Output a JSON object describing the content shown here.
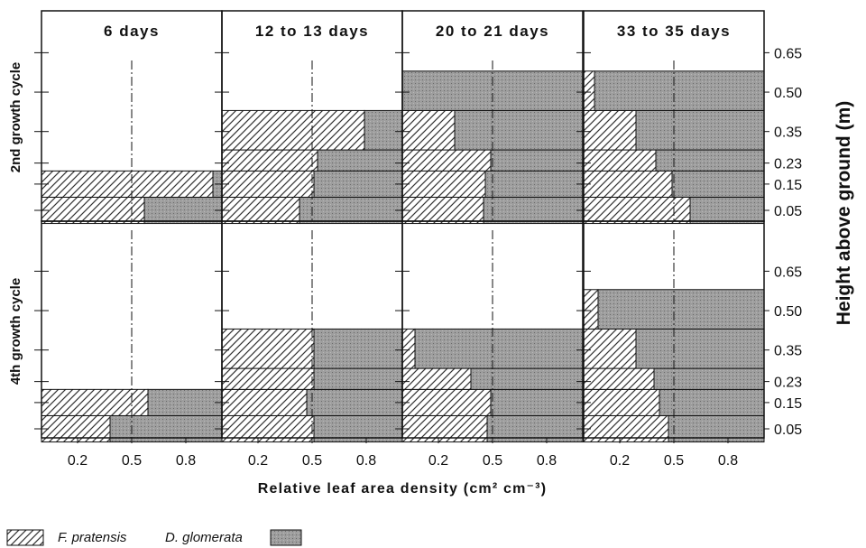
{
  "chart_data": {
    "type": "bar",
    "orientation": "horizontal",
    "stacked": true,
    "xlabel": "Relative leaf area density (cm² cm⁻³)",
    "ylabel": "Height above ground (m)",
    "x_ticks": [
      "0.2",
      "0.5",
      "0.8"
    ],
    "x_tick_values": [
      0.2,
      0.5,
      0.8
    ],
    "xlim": [
      0,
      1
    ],
    "reference_line_x": 0.5,
    "y_ticks": [
      "0.05",
      "0.15",
      "0.23",
      "0.35",
      "0.50",
      "0.65"
    ],
    "y_tick_values": [
      0.05,
      0.15,
      0.23,
      0.35,
      0.5,
      0.65
    ],
    "height_bands": [
      [
        0.0,
        0.1
      ],
      [
        0.1,
        0.2
      ],
      [
        0.2,
        0.28
      ],
      [
        0.28,
        0.43
      ],
      [
        0.43,
        0.58
      ]
    ],
    "legend": {
      "placement": "bottom-left",
      "items": [
        {
          "name": "F. pratensis",
          "pattern": "hatched"
        },
        {
          "name": "D. glomerata",
          "pattern": "stippled"
        }
      ]
    },
    "colors": {
      "d_glomerata": "#9e9e9e",
      "f_pratensis_hatch": "#333333",
      "frame": "#111111"
    },
    "column_titles": [
      "6 days",
      "12 to 13 days",
      "20 to 21 days",
      "33 to 35 days"
    ],
    "row_labels": [
      "2nd growth cycle",
      "4th growth cycle"
    ],
    "panels": [
      {
        "row": 0,
        "col": 0,
        "f_pratensis_fraction": [
          0.57,
          0.95
        ]
      },
      {
        "row": 0,
        "col": 1,
        "f_pratensis_fraction": [
          0.43,
          0.51,
          0.53,
          0.79
        ]
      },
      {
        "row": 0,
        "col": 2,
        "f_pratensis_fraction": [
          0.45,
          0.46,
          0.49,
          0.29,
          0.0
        ]
      },
      {
        "row": 0,
        "col": 3,
        "f_pratensis_fraction": [
          0.59,
          0.49,
          0.4,
          0.29,
          0.06
        ]
      },
      {
        "row": 1,
        "col": 0,
        "f_pratensis_fraction": [
          0.38,
          0.59
        ]
      },
      {
        "row": 1,
        "col": 1,
        "f_pratensis_fraction": [
          0.51,
          0.47,
          0.51,
          0.51
        ]
      },
      {
        "row": 1,
        "col": 2,
        "f_pratensis_fraction": [
          0.47,
          0.49,
          0.38,
          0.07
        ]
      },
      {
        "row": 1,
        "col": 3,
        "f_pratensis_fraction": [
          0.47,
          0.42,
          0.39,
          0.29,
          0.08
        ]
      }
    ]
  }
}
